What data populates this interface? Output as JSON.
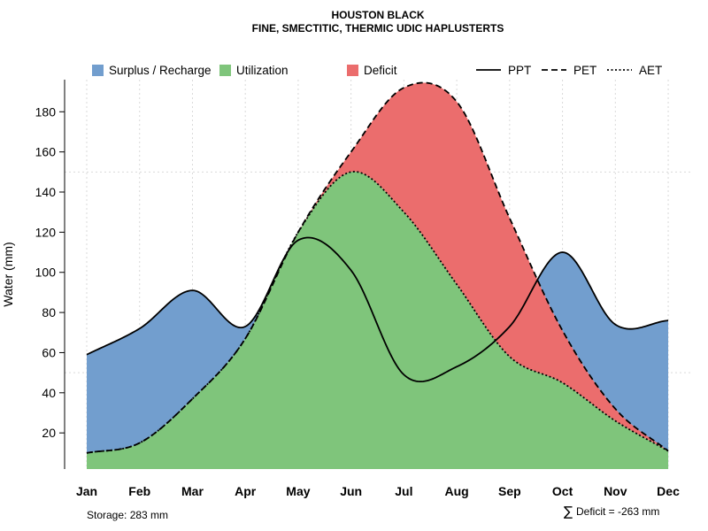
{
  "chart_data": {
    "type": "area",
    "title": "HOUSTON BLACK",
    "subtitle": "FINE, SMECTITIC, THERMIC UDIC HAPLUSTERTS",
    "ylabel": "Water (mm)",
    "xlabel": "",
    "ylim": [
      2,
      196
    ],
    "yticks": [
      20,
      40,
      60,
      80,
      100,
      120,
      140,
      160,
      180
    ],
    "categories": [
      "Jan",
      "Feb",
      "Mar",
      "Apr",
      "May",
      "Jun",
      "Jul",
      "Aug",
      "Sep",
      "Oct",
      "Nov",
      "Dec"
    ],
    "series": [
      {
        "name": "PPT",
        "style": "solid",
        "x": [
          0,
          1,
          2,
          3,
          4,
          5,
          6,
          7,
          8,
          9,
          10,
          11
        ],
        "values": [
          59,
          72,
          91,
          73,
          116,
          101,
          49,
          53,
          73,
          110,
          74,
          76
        ]
      },
      {
        "name": "PET",
        "style": "dashed",
        "x": [
          0,
          1,
          2,
          3,
          4,
          5,
          6,
          7,
          8,
          9,
          10,
          11
        ],
        "values": [
          10,
          15,
          37,
          67,
          120,
          160,
          192,
          185,
          127,
          71,
          32,
          11
        ]
      },
      {
        "name": "AET",
        "style": "dotted",
        "x": [
          0,
          1,
          2,
          3,
          4,
          5,
          6,
          7,
          8,
          9,
          10,
          11
        ],
        "values": [
          10,
          15,
          37,
          67,
          120,
          150,
          130,
          94,
          58,
          45,
          26,
          11
        ]
      }
    ],
    "areas": [
      {
        "name": "Surplus / Recharge",
        "color": "#729ECE"
      },
      {
        "name": "Utilization",
        "color": "#7FC57B"
      },
      {
        "name": "Deficit",
        "color": "#EB6D6D"
      }
    ],
    "legend": {
      "areas": [
        "Surplus / Recharge",
        "Utilization",
        "Deficit"
      ],
      "lines": [
        "PPT",
        "PET",
        "AET"
      ],
      "placement": "top"
    },
    "reference_lines": [
      150,
      50
    ],
    "storage_note": "Storage: 283 mm",
    "deficit_note": "Deficit = -263 mm",
    "sum_symbol": "∑"
  }
}
